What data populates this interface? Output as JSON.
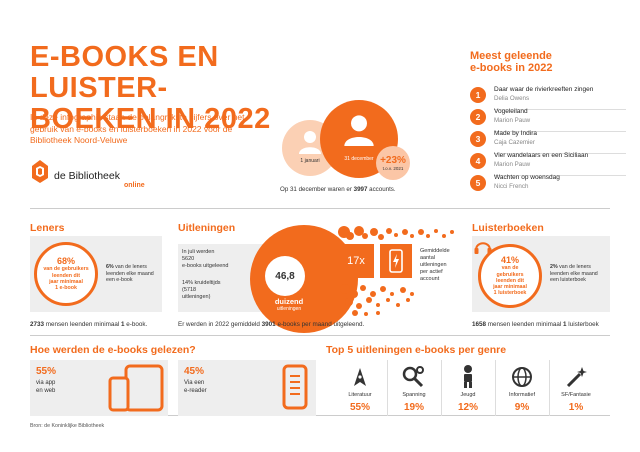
{
  "header": {
    "title_line1": "E-BOOKS EN LUISTER-",
    "title_line2": "BOEKEN IN 2022",
    "intro": "In deze infographic staan de belangrijkste cijfers over het gebruik van e-books en luisterboeken in 2022 voor de Bibliotheek Noord-Veluwe",
    "logo_name": "de Bibliotheek",
    "logo_sub": "online"
  },
  "accounts": {
    "date1": "1 januari",
    "date2": "31 december",
    "growth": "+23%",
    "growth_sub": "t.o.v. 2021",
    "note_pre": "Op 31 december waren er",
    "note_num": "3997",
    "note_post": "accounts."
  },
  "top5": {
    "heading_line1": "Meest geleende",
    "heading_line2": "e-books in 2022",
    "items": [
      {
        "num": "1",
        "title": "Daar waar de rivierkreeften zingen",
        "author": "Delia Owens"
      },
      {
        "num": "2",
        "title": "Vogeleiland",
        "author": "Marion Pauw"
      },
      {
        "num": "3",
        "title": "Made by Indira",
        "author": "Caja Cazemier"
      },
      {
        "num": "4",
        "title": "Vier wandelaars en een Siciliaan",
        "author": "Marion Pauw"
      },
      {
        "num": "5",
        "title": "Wachten op woensdag",
        "author": "Nicci French"
      }
    ]
  },
  "leners": {
    "heading": "Leners",
    "ring_pct": "68%",
    "ring_l1": "van de gebruikers",
    "ring_l2": "leenden dit",
    "ring_l3": "jaar minimaal",
    "ring_l4": "1 e-book",
    "side_pct": "6%",
    "side_text": "van de leners leenden elke maand een e-book",
    "footer_num": "2733",
    "footer_text": "mensen leenden minimaal",
    "footer_one": "1",
    "footer_end": "e-book."
  },
  "uitleningen": {
    "heading": "Uitleningen",
    "l1": "In juli werden",
    "l2": "5620",
    "l3": "e-books uitgeleend",
    "m1": "14% kruideltijds",
    "m2": "(5718",
    "m3": "uitleningen)",
    "center": "46,8",
    "k1": "duizend",
    "k2": "uitleningen",
    "avg_x": "17x",
    "avg_l1": "Gemiddelde",
    "avg_l2": "aantal",
    "avg_l3": "uitleningen",
    "avg_l4": "per actief",
    "avg_l5": "account",
    "footer_pre": "Er werden in 2022 gemiddeld",
    "footer_num": "3901",
    "footer_post": "e-books per maand uitgeleend."
  },
  "luisterboeken": {
    "heading": "Luisterboeken",
    "ring_pct": "41%",
    "ring_l1": "van de",
    "ring_l2": "gebruikers",
    "ring_l3": "leenden dit",
    "ring_l4": "jaar minimaal",
    "ring_l5": "1 luisterboek",
    "side_pct": "2%",
    "side_text": "van de leners leenden elke maand een luisterboek",
    "footer_num": "1658",
    "footer_text": "mensen leenden minimaal",
    "footer_one": "1",
    "footer_end": "luisterboek"
  },
  "gelezen": {
    "heading": "Hoe werden de e-books gelezen?",
    "app_pct": "55%",
    "app_l1": "via app",
    "app_l2": "en web",
    "ereader_pct": "45%",
    "ereader_l1": "Via een",
    "ereader_l2": "e-reader"
  },
  "genres": {
    "heading": "Top 5 uitleningen e-books per genre",
    "items": [
      {
        "label": "Literatuur",
        "pct": "55%",
        "icon": "pen-icon"
      },
      {
        "label": "Spanning",
        "pct": "19%",
        "icon": "magnifier-icon"
      },
      {
        "label": "Jeugd",
        "pct": "12%",
        "icon": "child-icon"
      },
      {
        "label": "Informatief",
        "pct": "9%",
        "icon": "globe-icon"
      },
      {
        "label": "SF/Fantasie",
        "pct": "1%",
        "icon": "magic-wand-icon"
      }
    ]
  },
  "source": "Bron: de Koninklijke Bibliotheek",
  "colors": {
    "accent": "#f26b1d",
    "light": "#fbd0b4",
    "card": "#eeeeee"
  }
}
